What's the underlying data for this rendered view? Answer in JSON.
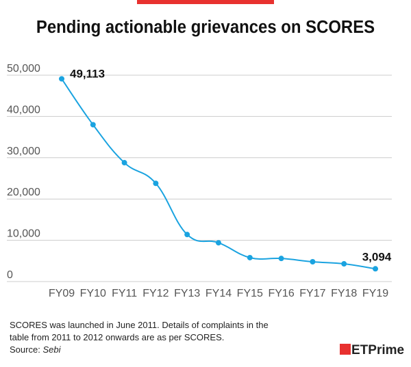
{
  "chart_data": {
    "type": "line",
    "title": "Pending actionable grievances on SCORES",
    "categories": [
      "FY09",
      "FY10",
      "FY11",
      "FY12",
      "FY13",
      "FY14",
      "FY15",
      "FY16",
      "FY17",
      "FY18",
      "FY19"
    ],
    "series": [
      {
        "color": "#1aa3e0",
        "values": [
          49113,
          38000,
          28800,
          23800,
          11400,
          9400,
          5800,
          5600,
          4800,
          4300,
          3094
        ],
        "value_labels": [
          "49,113",
          null,
          null,
          null,
          null,
          null,
          null,
          null,
          null,
          null,
          "3,094"
        ]
      }
    ],
    "ylim": [
      0,
      50000
    ],
    "yticks": [
      0,
      {
        "value": 10000,
        "label": "10,000"
      },
      {
        "value": 20000,
        "label": "20,000"
      },
      {
        "value": 30000,
        "label": "30,000"
      },
      {
        "value": 40000,
        "label": "40,000"
      },
      {
        "value": 50000,
        "label": "50,000"
      }
    ],
    "grid": true,
    "notes": [
      "SCORES was launched in June 2011. Details of complaints in the",
      "table from 2011 to 2012 onwards are as per SCORES."
    ],
    "source_label": "Source:",
    "source": "Sebi",
    "logo": "ETPrime"
  }
}
